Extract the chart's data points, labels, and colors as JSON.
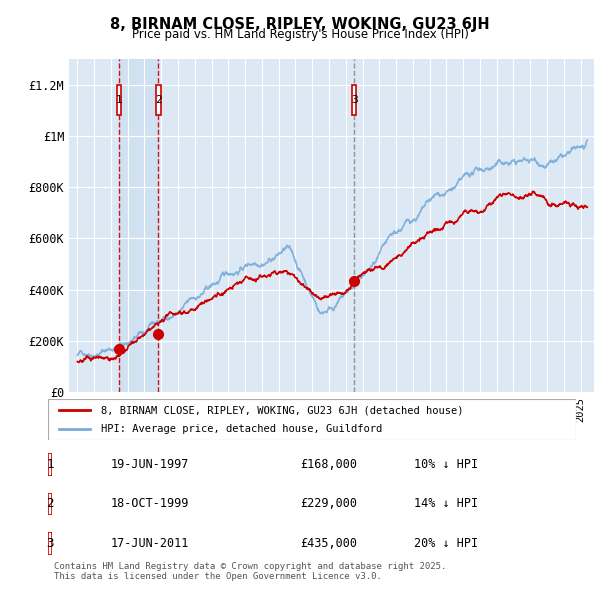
{
  "title": "8, BIRNAM CLOSE, RIPLEY, WOKING, GU23 6JH",
  "subtitle": "Price paid vs. HM Land Registry's House Price Index (HPI)",
  "property_label": "8, BIRNAM CLOSE, RIPLEY, WOKING, GU23 6JH (detached house)",
  "hpi_label": "HPI: Average price, detached house, Guildford",
  "background_color": "#dce9f5",
  "plot_bg_color": "#dce9f5",
  "ylim": [
    0,
    1300000
  ],
  "yticks": [
    0,
    200000,
    400000,
    600000,
    800000,
    1000000,
    1200000
  ],
  "ytick_labels": [
    "£0",
    "£200K",
    "£400K",
    "£600K",
    "£800K",
    "£1M",
    "£1.2M"
  ],
  "sale_prices": [
    168000,
    229000,
    435000
  ],
  "sale_numbers": [
    1,
    2,
    3
  ],
  "vline_colors": [
    "#cc0000",
    "#cc0000",
    "#888888"
  ],
  "shade_color": "#d8e8f5",
  "property_line_color": "#cc0000",
  "hpi_line_color": "#7aabdb",
  "footnote": "Contains HM Land Registry data © Crown copyright and database right 2025.\nThis data is licensed under the Open Government Licence v3.0.",
  "x_start_year": 1995,
  "x_end_year": 2025,
  "sale_dates_str": [
    "19-JUN-1997",
    "18-OCT-1999",
    "17-JUN-2011"
  ],
  "sale_prices_str": [
    "£168,000",
    "£229,000",
    "£435,000"
  ],
  "sale_hpi_str": [
    "10% ↓ HPI",
    "14% ↓ HPI",
    "20% ↓ HPI"
  ]
}
